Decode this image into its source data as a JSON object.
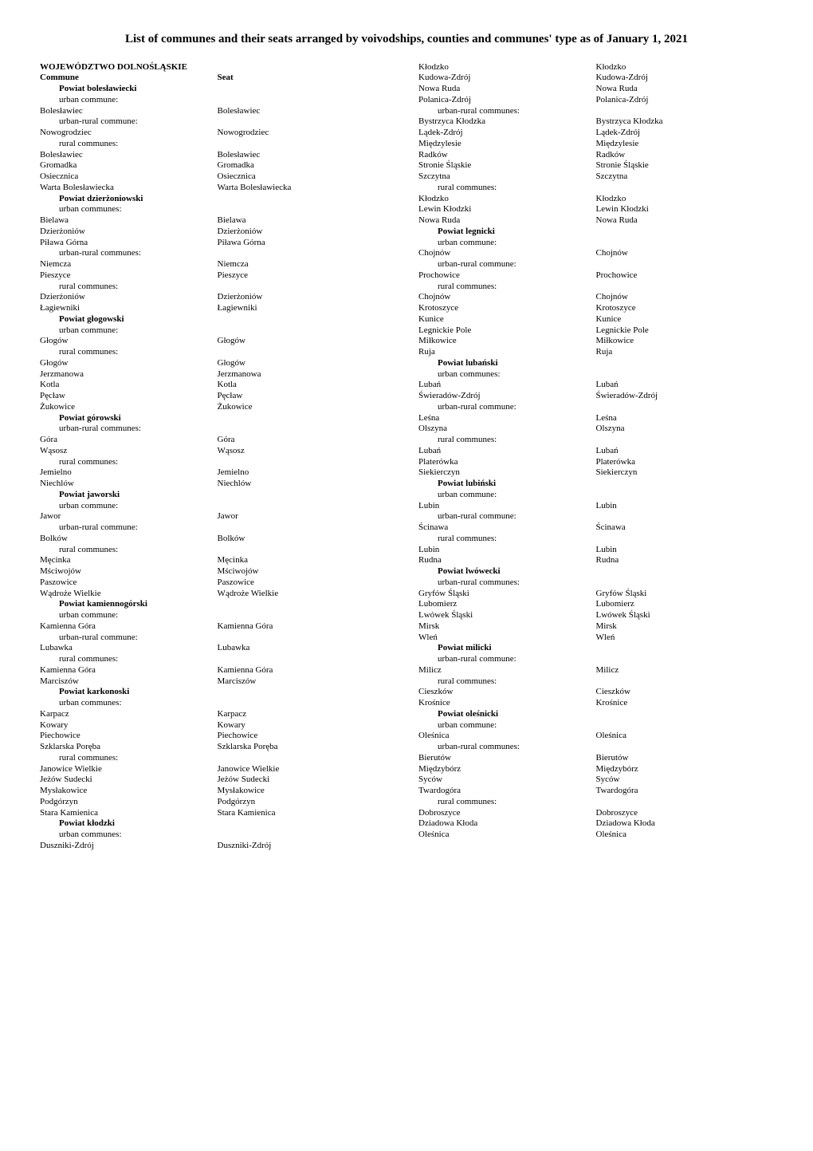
{
  "title": "List of communes and their seats arranged by voivodships, counties and communes' type as of January 1, 2021",
  "header": {
    "commune": "Commune",
    "seat": "Seat"
  },
  "labels": {
    "urban_commune": "urban commune:",
    "urban_communes": "urban communes:",
    "urban_rural_commune": "urban-rural commune:",
    "urban_rural_communes": "urban-rural communes:",
    "rural_communes": "rural communes:"
  },
  "voivodeship": "WOJEWÓDZTWO DOLNOŚLĄSKIE",
  "left": [
    {
      "powiat": "Powiat bolesławiecki",
      "groups": [
        {
          "type": "urban_commune",
          "rows": [
            [
              "Bolesławiec",
              "Bolesławiec"
            ]
          ]
        },
        {
          "type": "urban_rural_commune",
          "rows": [
            [
              "Nowogrodziec",
              "Nowogrodziec"
            ]
          ]
        },
        {
          "type": "rural_communes",
          "rows": [
            [
              "Bolesławiec",
              "Bolesławiec"
            ],
            [
              "Gromadka",
              "Gromadka"
            ],
            [
              "Osiecznica",
              "Osiecznica"
            ],
            [
              "Warta Bolesławiecka",
              "Warta Bolesławiecka"
            ]
          ]
        }
      ]
    },
    {
      "powiat": "Powiat dzierżoniowski",
      "groups": [
        {
          "type": "urban_communes",
          "rows": [
            [
              "Bielawa",
              "Bielawa"
            ],
            [
              "Dzierżoniów",
              "Dzierżoniów"
            ],
            [
              "Piława Górna",
              "Piława Górna"
            ]
          ]
        },
        {
          "type": "urban_rural_communes",
          "rows": [
            [
              "Niemcza",
              "Niemcza"
            ],
            [
              "Pieszyce",
              "Pieszyce"
            ]
          ]
        },
        {
          "type": "rural_communes",
          "rows": [
            [
              "Dzierżoniów",
              "Dzierżoniów"
            ],
            [
              "Łagiewniki",
              "Łagiewniki"
            ]
          ]
        }
      ]
    },
    {
      "powiat": "Powiat głogowski",
      "groups": [
        {
          "type": "urban_commune",
          "rows": [
            [
              "Głogów",
              "Głogów"
            ]
          ]
        },
        {
          "type": "rural_communes",
          "rows": [
            [
              "Głogów",
              "Głogów"
            ],
            [
              "Jerzmanowa",
              "Jerzmanowa"
            ],
            [
              "Kotla",
              "Kotla"
            ],
            [
              "Pęcław",
              "Pęcław"
            ],
            [
              "Żukowice",
              "Żukowice"
            ]
          ]
        }
      ]
    },
    {
      "powiat": "Powiat górowski",
      "groups": [
        {
          "type": "urban_rural_communes",
          "rows": [
            [
              "Góra",
              "Góra"
            ],
            [
              "Wąsosz",
              "Wąsosz"
            ]
          ]
        },
        {
          "type": "rural_communes",
          "rows": [
            [
              "Jemielno",
              "Jemielno"
            ],
            [
              "Niechlów",
              "Niechlów"
            ]
          ]
        }
      ]
    },
    {
      "powiat": "Powiat jaworski",
      "groups": [
        {
          "type": "urban_commune",
          "rows": [
            [
              "Jawor",
              "Jawor"
            ]
          ]
        },
        {
          "type": "urban_rural_commune",
          "rows": [
            [
              "Bolków",
              "Bolków"
            ]
          ]
        },
        {
          "type": "rural_communes",
          "rows": [
            [
              "Męcinka",
              "Męcinka"
            ],
            [
              "Mściwojów",
              "Mściwojów"
            ],
            [
              "Paszowice",
              "Paszowice"
            ],
            [
              "Wądroże Wielkie",
              "Wądroże Wielkie"
            ]
          ]
        }
      ]
    },
    {
      "powiat": "Powiat kamiennogórski",
      "groups": [
        {
          "type": "urban_commune",
          "rows": [
            [
              "Kamienna Góra",
              "Kamienna Góra"
            ]
          ]
        },
        {
          "type": "urban_rural_commune",
          "rows": [
            [
              "Lubawka",
              "Lubawka"
            ]
          ]
        },
        {
          "type": "rural_communes",
          "rows": [
            [
              "Kamienna Góra",
              "Kamienna Góra"
            ],
            [
              "Marciszów",
              "Marciszów"
            ]
          ]
        }
      ]
    },
    {
      "powiat": "Powiat karkonoski",
      "groups": [
        {
          "type": "urban_communes",
          "rows": [
            [
              "Karpacz",
              "Karpacz"
            ],
            [
              "Kowary",
              "Kowary"
            ],
            [
              "Piechowice",
              "Piechowice"
            ],
            [
              "Szklarska Poręba",
              "Szklarska Poręba"
            ]
          ]
        },
        {
          "type": "rural_communes",
          "rows": [
            [
              "Janowice Wielkie",
              "Janowice Wielkie"
            ],
            [
              "Jeżów Sudecki",
              "Jeżów Sudecki"
            ],
            [
              "Mysłakowice",
              "Mysłakowice"
            ],
            [
              "Podgórzyn",
              "Podgórzyn"
            ],
            [
              "Stara Kamienica",
              "Stara Kamienica"
            ]
          ]
        }
      ]
    },
    {
      "powiat": "Powiat kłodzki",
      "groups": [
        {
          "type": "urban_communes",
          "rows": [
            [
              "Duszniki-Zdrój",
              "Duszniki-Zdrój"
            ]
          ]
        }
      ]
    }
  ],
  "right_prelude": [
    [
      "Kłodzko",
      "Kłodzko"
    ],
    [
      "Kudowa-Zdrój",
      "Kudowa-Zdrój"
    ],
    [
      "Nowa Ruda",
      "Nowa Ruda"
    ],
    [
      "Polanica-Zdrój",
      "Polanica-Zdrój"
    ]
  ],
  "right_prelude_groups": [
    {
      "type": "urban_rural_communes",
      "rows": [
        [
          "Bystrzyca Kłodzka",
          "Bystrzyca Kłodzka"
        ],
        [
          "Lądek-Zdrój",
          "Lądek-Zdrój"
        ],
        [
          "Międzylesie",
          "Międzylesie"
        ],
        [
          "Radków",
          "Radków"
        ],
        [
          "Stronie Śląskie",
          "Stronie Śląskie"
        ],
        [
          "Szczytna",
          "Szczytna"
        ]
      ]
    },
    {
      "type": "rural_communes",
      "rows": [
        [
          "Kłodzko",
          "Kłodzko"
        ],
        [
          "Lewin Kłodzki",
          "Lewin Kłodzki"
        ],
        [
          "Nowa Ruda",
          "Nowa Ruda"
        ]
      ]
    }
  ],
  "right": [
    {
      "powiat": "Powiat legnicki",
      "groups": [
        {
          "type": "urban_commune",
          "rows": [
            [
              "Chojnów",
              "Chojnów"
            ]
          ]
        },
        {
          "type": "urban_rural_commune",
          "rows": [
            [
              "Prochowice",
              "Prochowice"
            ]
          ]
        },
        {
          "type": "rural_communes",
          "rows": [
            [
              "Chojnów",
              "Chojnów"
            ],
            [
              "Krotoszyce",
              "Krotoszyce"
            ],
            [
              "Kunice",
              "Kunice"
            ],
            [
              "Legnickie Pole",
              "Legnickie Pole"
            ],
            [
              "Miłkowice",
              "Miłkowice"
            ],
            [
              "Ruja",
              "Ruja"
            ]
          ]
        }
      ]
    },
    {
      "powiat": "Powiat lubański",
      "groups": [
        {
          "type": "urban_communes",
          "rows": [
            [
              "Lubań",
              "Lubań"
            ],
            [
              "Świeradów-Zdrój",
              "Świeradów-Zdrój"
            ]
          ]
        },
        {
          "type": "urban_rural_commune",
          "rows": [
            [
              "Leśna",
              "Leśna"
            ],
            [
              "Olszyna",
              "Olszyna"
            ]
          ]
        },
        {
          "type": "rural_communes",
          "rows": [
            [
              "Lubań",
              "Lubań"
            ],
            [
              "Platerówka",
              "Platerówka"
            ],
            [
              "Siekierczyn",
              "Siekierczyn"
            ]
          ]
        }
      ]
    },
    {
      "powiat": "Powiat lubiński",
      "groups": [
        {
          "type": "urban_commune",
          "rows": [
            [
              "Lubin",
              "Lubin"
            ]
          ]
        },
        {
          "type": "urban_rural_commune",
          "rows": [
            [
              "Ścinawa",
              "Ścinawa"
            ]
          ]
        },
        {
          "type": "rural_communes",
          "rows": [
            [
              "Lubin",
              "Lubin"
            ],
            [
              "Rudna",
              "Rudna"
            ]
          ]
        }
      ]
    },
    {
      "powiat": "Powiat lwówecki",
      "groups": [
        {
          "type": "urban_rural_communes",
          "rows": [
            [
              "Gryfów Śląski",
              "Gryfów Śląski"
            ],
            [
              "Lubomierz",
              "Lubomierz"
            ],
            [
              "Lwówek Śląski",
              "Lwówek Śląski"
            ],
            [
              "Mirsk",
              "Mirsk"
            ],
            [
              "Wleń",
              "Wleń"
            ]
          ]
        }
      ]
    },
    {
      "powiat": "Powiat milicki",
      "groups": [
        {
          "type": "urban_rural_commune",
          "rows": [
            [
              "Milicz",
              "Milicz"
            ]
          ]
        },
        {
          "type": "rural_communes",
          "rows": [
            [
              "Cieszków",
              "Cieszków"
            ],
            [
              "Krośnice",
              "Krośnice"
            ]
          ]
        }
      ]
    },
    {
      "powiat": "Powiat oleśnicki",
      "groups": [
        {
          "type": "urban_commune",
          "rows": [
            [
              "Oleśnica",
              "Oleśnica"
            ]
          ]
        },
        {
          "type": "urban_rural_communes",
          "rows": [
            [
              "Bierutów",
              "Bierutów"
            ],
            [
              "Międzybórz",
              "Międzybórz"
            ],
            [
              "Syców",
              "Syców"
            ],
            [
              "Twardogóra",
              "Twardogóra"
            ]
          ]
        },
        {
          "type": "rural_communes",
          "rows": [
            [
              "Dobroszyce",
              "Dobroszyce"
            ],
            [
              "Dziadowa Kłoda",
              "Dziadowa Kłoda"
            ],
            [
              "Oleśnica",
              "Oleśnica"
            ]
          ]
        }
      ]
    }
  ]
}
